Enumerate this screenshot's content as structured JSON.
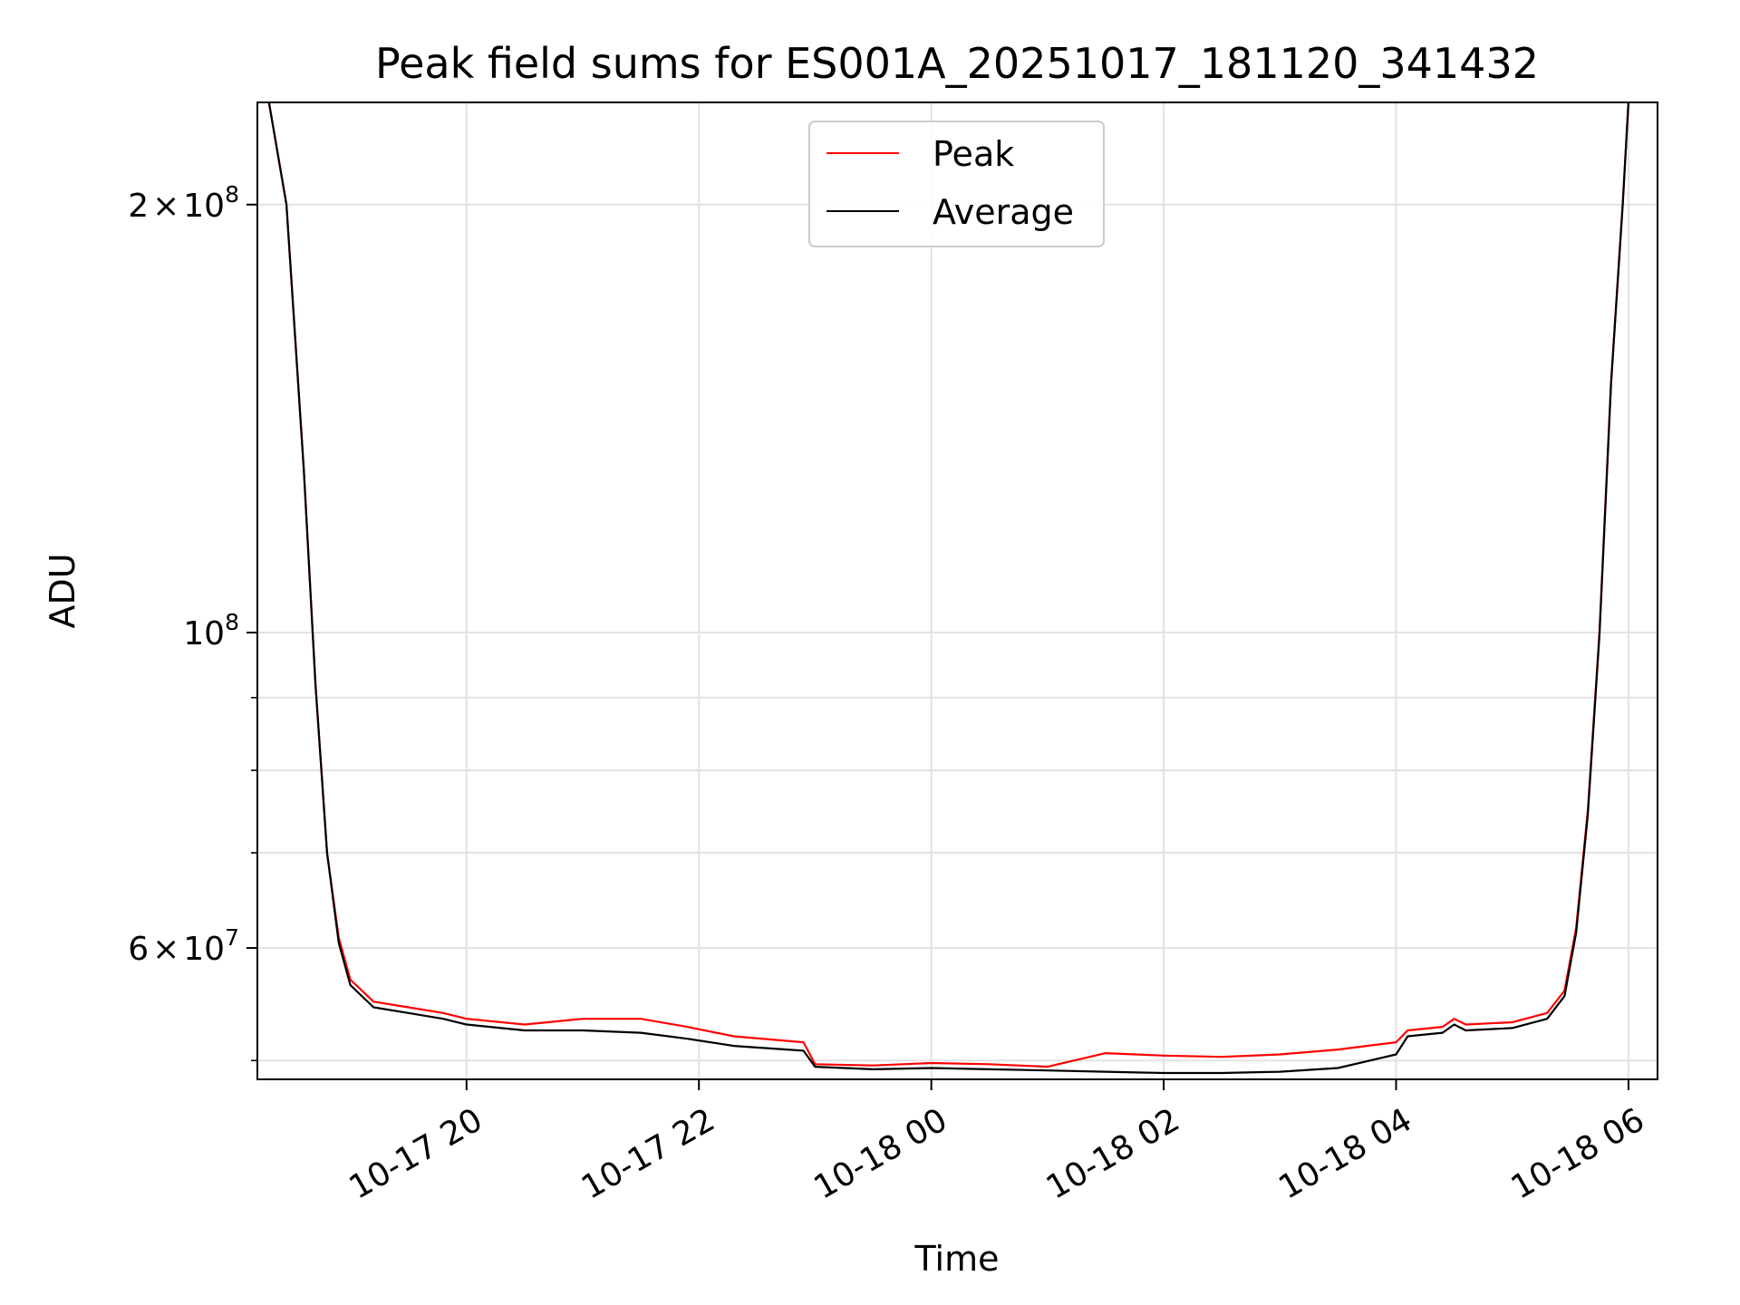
{
  "chart_data": {
    "type": "line",
    "title": "Peak field sums for ES001A_20251017_181120_341432",
    "xlabel": "Time",
    "ylabel": "ADU",
    "yscale": "log",
    "ylim": [
      48500000,
      236000000
    ],
    "x_range_hours": [
      -1.8,
      10.25
    ],
    "x_ticks": [
      {
        "hours": 0,
        "label": "10-17 20"
      },
      {
        "hours": 2,
        "label": "10-17 22"
      },
      {
        "hours": 4,
        "label": "10-18 00"
      },
      {
        "hours": 6,
        "label": "10-18 02"
      },
      {
        "hours": 8,
        "label": "10-18 04"
      },
      {
        "hours": 10,
        "label": "10-18 06"
      }
    ],
    "y_major_ticks": [
      {
        "value": 60000000,
        "mantissa": "6",
        "exponent": "7"
      },
      {
        "value": 100000000,
        "mantissa": "",
        "exponent": "8"
      },
      {
        "value": 200000000,
        "mantissa": "2",
        "exponent": "8"
      }
    ],
    "y_minor_ticks": [
      50000000,
      70000000,
      80000000,
      90000000
    ],
    "grid": true,
    "legend_position": "top-center",
    "series": [
      {
        "name": "Peak",
        "color": "#ff0000",
        "x_hours": [
          -1.7,
          -1.55,
          -1.4,
          -1.3,
          -1.2,
          -1.1,
          -1.0,
          -0.8,
          -0.5,
          -0.2,
          0.0,
          0.5,
          1.0,
          1.5,
          1.9,
          2.3,
          2.9,
          3.0,
          3.5,
          4.0,
          4.5,
          5.0,
          5.5,
          6.0,
          6.5,
          7.0,
          7.5,
          8.0,
          8.1,
          8.4,
          8.5,
          8.6,
          9.0,
          9.3,
          9.45,
          9.55,
          9.65,
          9.75,
          9.85,
          9.95,
          10.0
        ],
        "values": [
          236000000,
          200000000,
          130000000,
          92000000,
          70000000,
          61000000,
          57000000,
          55000000,
          54500000,
          54000000,
          53500000,
          53000000,
          53500000,
          53500000,
          52800000,
          52000000,
          51500000,
          49700000,
          49600000,
          49800000,
          49700000,
          49500000,
          50600000,
          50400000,
          50300000,
          50500000,
          50900000,
          51500000,
          52500000,
          52800000,
          53500000,
          53000000,
          53200000,
          54000000,
          56000000,
          62000000,
          75000000,
          100000000,
          150000000,
          200000000,
          236000000
        ]
      },
      {
        "name": "Average",
        "color": "#000000",
        "x_hours": [
          -1.7,
          -1.55,
          -1.4,
          -1.3,
          -1.2,
          -1.1,
          -1.0,
          -0.8,
          -0.5,
          -0.2,
          0.0,
          0.5,
          1.0,
          1.5,
          1.9,
          2.3,
          2.9,
          3.0,
          3.5,
          4.0,
          4.5,
          5.0,
          5.5,
          6.0,
          6.5,
          7.0,
          7.5,
          8.0,
          8.1,
          8.4,
          8.5,
          8.6,
          9.0,
          9.3,
          9.45,
          9.55,
          9.65,
          9.75,
          9.85,
          9.95,
          10.0
        ],
        "values": [
          236000000,
          200000000,
          130000000,
          92000000,
          70000000,
          60500000,
          56500000,
          54500000,
          54000000,
          53500000,
          53000000,
          52500000,
          52500000,
          52300000,
          51800000,
          51200000,
          50800000,
          49500000,
          49300000,
          49400000,
          49300000,
          49200000,
          49100000,
          49000000,
          49000000,
          49100000,
          49400000,
          50500000,
          52000000,
          52300000,
          53000000,
          52500000,
          52700000,
          53500000,
          55500000,
          61500000,
          74500000,
          99500000,
          149500000,
          199500000,
          236000000
        ]
      }
    ]
  }
}
